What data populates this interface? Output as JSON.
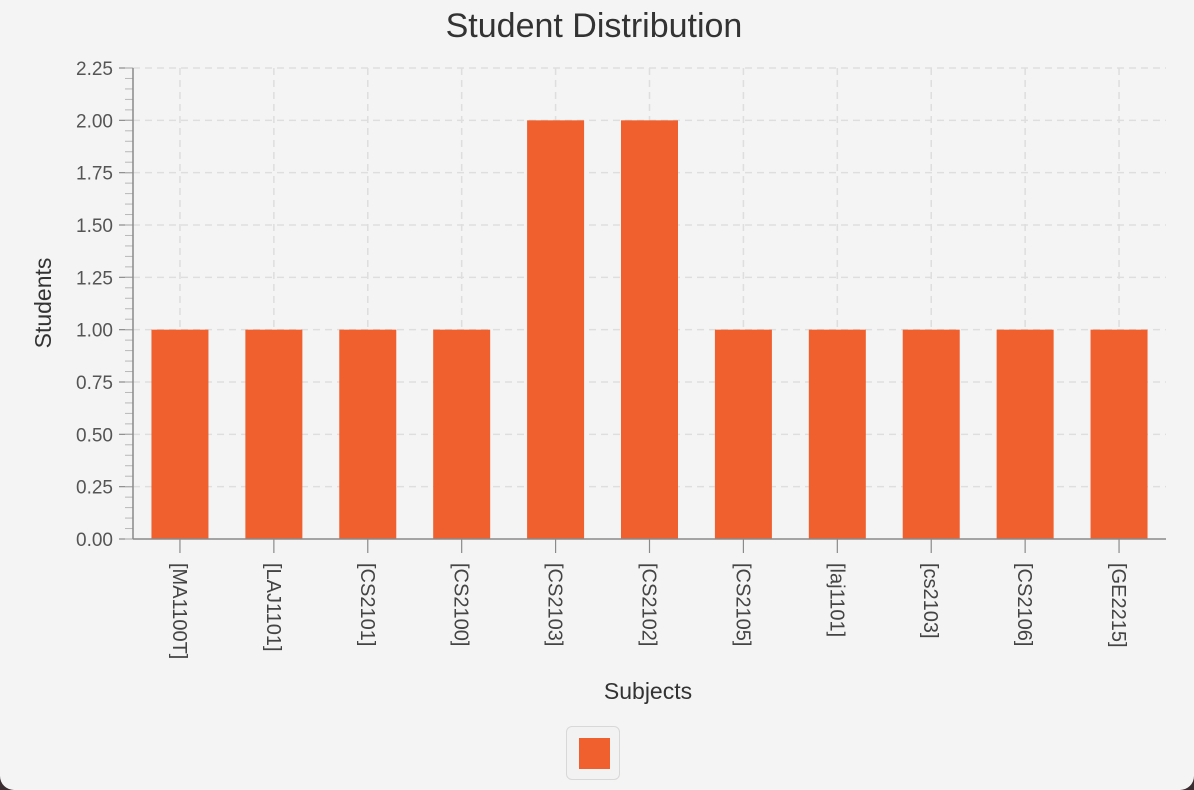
{
  "chart_data": {
    "type": "bar",
    "title": "Student Distribution",
    "xlabel": "Subjects",
    "ylabel": "Students",
    "categories": [
      "[MA1100T]",
      "[LAJ1101]",
      "[CS2101]",
      "[CS2100]",
      "[CS2103]",
      "[CS2102]",
      "[CS2105]",
      "[laj1101]",
      "[cs2103]",
      "[CS2106]",
      "[GE2215]"
    ],
    "series": [
      {
        "values": [
          1,
          1,
          1,
          1,
          2,
          2,
          1,
          1,
          1,
          1,
          1
        ]
      }
    ],
    "ylim": [
      0,
      2.25
    ],
    "yticks": [
      "0.00",
      "0.25",
      "0.50",
      "0.75",
      "1.00",
      "1.25",
      "1.50",
      "1.75",
      "2.00",
      "2.25"
    ],
    "grid": true,
    "legend_position": "bottom-center",
    "bar_color": "#f0602e",
    "gridline_color": "#dedede",
    "axis_color": "#8a8a8a"
  }
}
